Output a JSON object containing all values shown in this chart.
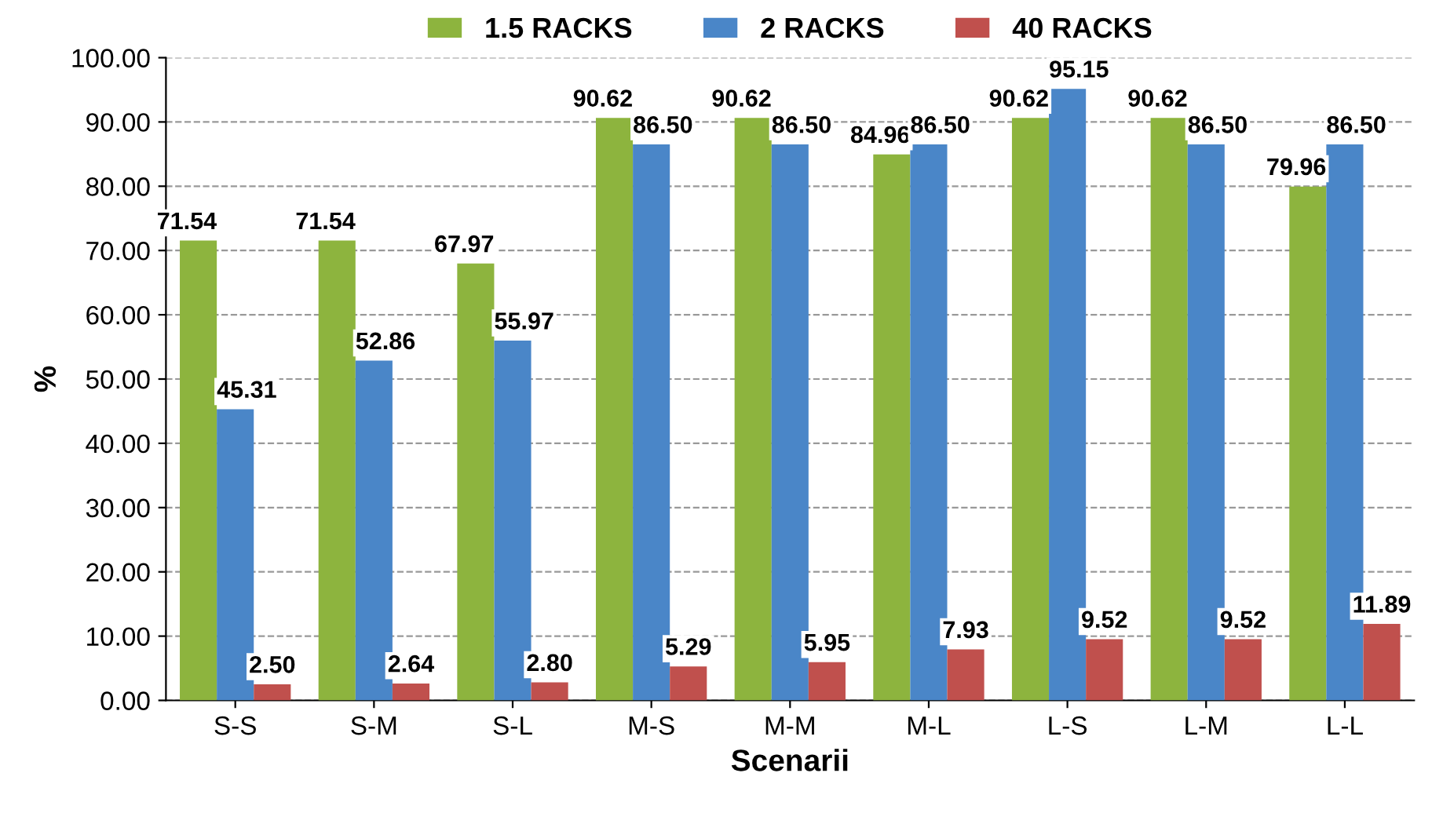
{
  "chart_data": {
    "type": "bar",
    "xlabel": "Scenarii",
    "ylabel": "%",
    "categories": [
      "S-S",
      "S-M",
      "S-L",
      "M-S",
      "M-M",
      "M-L",
      "L-S",
      "L-M",
      "L-L"
    ],
    "series": [
      {
        "name": "1.5 RACKS",
        "color": "#8db43e",
        "values": [
          71.54,
          71.54,
          67.97,
          90.62,
          90.62,
          84.96,
          90.62,
          90.62,
          79.96
        ],
        "value_labels": [
          "71.54",
          "71.54",
          "67.97",
          "90.62",
          "90.62",
          "84.96",
          "90.62",
          "90.62",
          "79.96"
        ]
      },
      {
        "name": "2 RACKS",
        "color": "#4a86c8",
        "values": [
          45.31,
          52.86,
          55.97,
          86.5,
          86.5,
          86.5,
          95.15,
          86.5,
          86.5
        ],
        "value_labels": [
          "45.31",
          "52.86",
          "55.97",
          "86.50",
          "86.50",
          "86.50",
          "95.15",
          "86.50",
          "86.50"
        ]
      },
      {
        "name": "40 RACKS",
        "color": "#c0504d",
        "values": [
          2.5,
          2.64,
          2.8,
          5.29,
          5.95,
          7.93,
          9.52,
          9.52,
          11.89
        ],
        "value_labels": [
          "2.50",
          "2.64",
          "2.80",
          "5.29",
          "5.95",
          "7.93",
          "9.52",
          "9.52",
          "11.89"
        ]
      }
    ],
    "ylim": [
      0,
      100
    ],
    "yticks": [
      {
        "value": 0,
        "label": "0.00"
      },
      {
        "value": 10,
        "label": "10.00"
      },
      {
        "value": 20,
        "label": "20.00"
      },
      {
        "value": 30,
        "label": "30.00"
      },
      {
        "value": 40,
        "label": "40.00"
      },
      {
        "value": 50,
        "label": "50.00"
      },
      {
        "value": 60,
        "label": "60.00"
      },
      {
        "value": 70,
        "label": "70.00"
      },
      {
        "value": 80,
        "label": "80.00"
      },
      {
        "value": 90,
        "label": "90.00"
      },
      {
        "value": 100,
        "label": "100.00"
      }
    ],
    "grid": "y",
    "legend": "top"
  }
}
